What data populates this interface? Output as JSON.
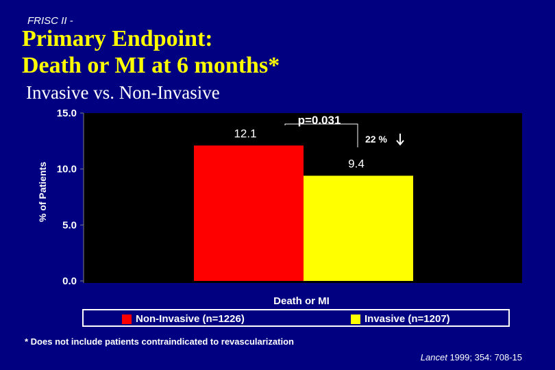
{
  "slide": {
    "header_tag": "FRISC II -",
    "title_line_1": "Primary Endpoint:",
    "title_line_2": "Death or MI at 6 months*",
    "subtitle": "Invasive vs. Non-Invasive",
    "footnote": "* Does not include patients contraindicated to revascularization",
    "citation_journal": "Lancet",
    "citation_detail": " 1999; 354: 708-15"
  },
  "colors": {
    "background": "#000080",
    "title": "#ffff00",
    "plot_area": "#000000",
    "non_invasive": "#ff0000",
    "invasive": "#ffff00"
  },
  "chart_data": {
    "type": "bar",
    "categories": [
      "Death or MI"
    ],
    "series": [
      {
        "name": "Non-Invasive (n=1226)",
        "values": [
          12.1
        ],
        "label": "12.1",
        "color": "#ff0000"
      },
      {
        "name": "Invasive (n=1207)",
        "values": [
          9.4
        ],
        "label": "9.4",
        "color": "#ffff00"
      }
    ],
    "xlabel": "Death or MI",
    "ylabel": "% of Patients",
    "ylim": [
      0,
      15
    ],
    "yticks": [
      "0.0",
      "5.0",
      "10.0",
      "15.0"
    ],
    "ytick_values": [
      0,
      5,
      10,
      15
    ],
    "grid": false,
    "legend": "bottom",
    "annotations": {
      "p_value": "p=0.031",
      "reduction": "22 %"
    }
  }
}
